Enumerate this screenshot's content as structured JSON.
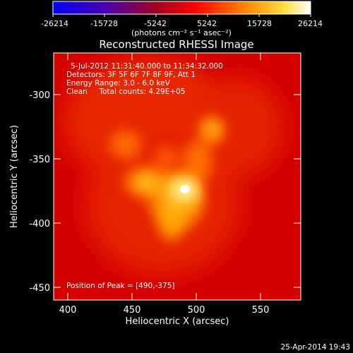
{
  "colorbar": {
    "ticks": [
      "-26214",
      "-15728",
      "-5242",
      "5242",
      "15728",
      "26214"
    ],
    "unit_label": "(photons cm⁻² s⁻¹ asec⁻²)",
    "colors": [
      "#0000ff",
      "#5a00a0",
      "#a00020",
      "#ff0000",
      "#ff8800",
      "#ffff30",
      "#ffffff"
    ]
  },
  "title": "Reconstructed RHESSI Image",
  "info": {
    "line1": "5-Jul-2012 11:31:40.000 to 11:34:32.000",
    "line2": "Detectors: 3F 5F 6F 7F 8F 9F, Att 1",
    "line3": "Energy Range: 3.0 - 6.0 keV",
    "line4": "Clean     Total counts: 4.29E+05"
  },
  "peak_label": "Position of Peak = [490,-375]",
  "axes": {
    "xlabel": "Heliocentric X (arcsec)",
    "ylabel": "Heliocentric Y (arcsec)",
    "xticks": [
      "400",
      "450",
      "500",
      "550"
    ],
    "yticks": [
      "-300",
      "-350",
      "-400",
      "-450"
    ]
  },
  "timestamp": "25-Apr-2014 19:43"
}
